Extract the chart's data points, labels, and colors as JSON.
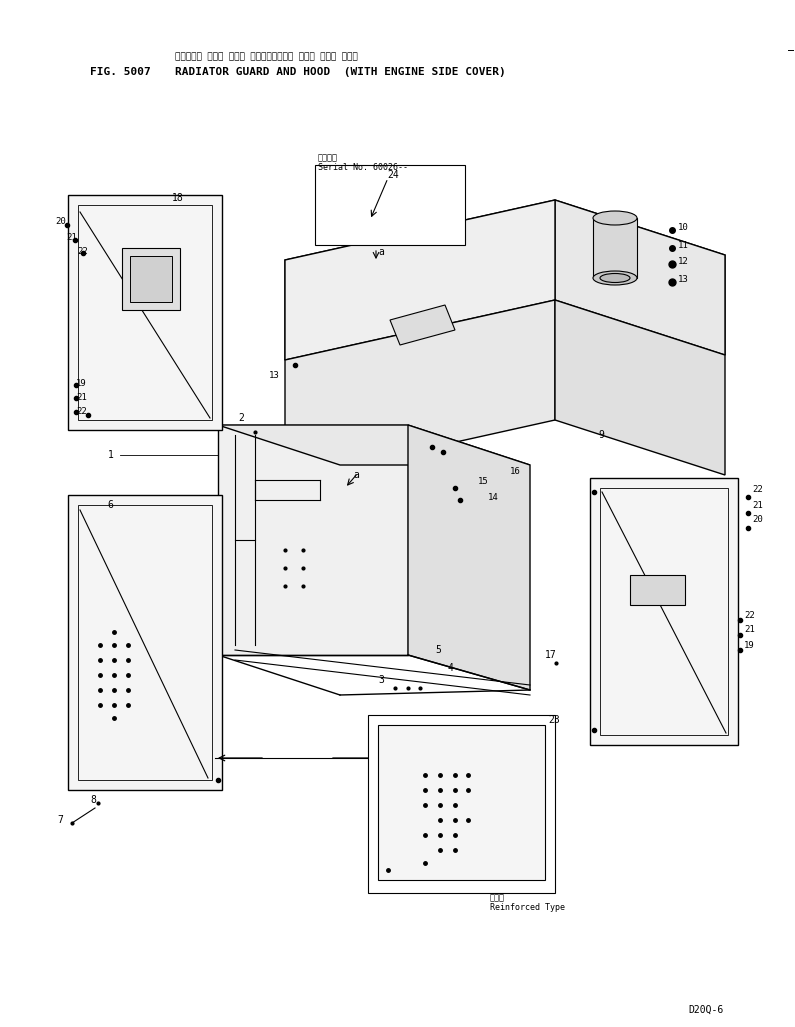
{
  "title_jp": "ラジエータ ガード および フード（エンジン サイド カバー ツキ）",
  "title_en": "RADIATOR GUARD AND HOOD  (WITH ENGINE SIDE COVER)",
  "fig_label": "FIG. 5007",
  "model": "D20Q-6",
  "serial_text1": "適用番号",
  "serial_text2": "Serial No. 60026--",
  "bg_color": "#ffffff",
  "line_color": "#000000",
  "reinforced_line1": "強化型",
  "reinforced_line2": "Reinforced Type"
}
